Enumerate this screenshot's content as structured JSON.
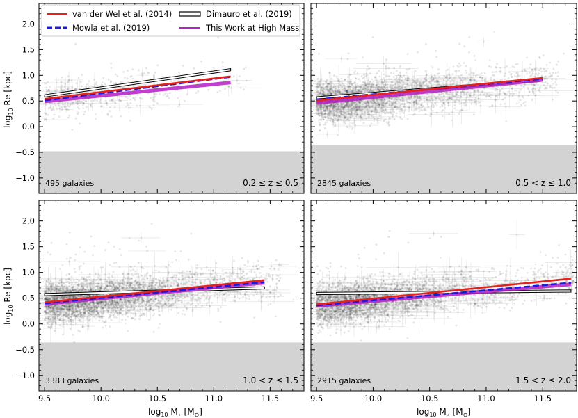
{
  "chart_data": {
    "type": "scatter",
    "xlabel": "log10 M⋆ [M⊙]",
    "ylabel": "log10 Re [kpc]",
    "xlabel_parts": {
      "base": "log",
      "sub": "10",
      "rest": " M",
      "star": "⋆",
      "unit": " [M",
      "sun": "⊙",
      "close": "]"
    },
    "ylabel_parts": {
      "base": "log",
      "sub": "10",
      "rest": " Re [kpc]"
    },
    "xlim": [
      9.45,
      11.8
    ],
    "ylim": [
      -1.3,
      2.4
    ],
    "xticks": [
      9.5,
      10.0,
      10.5,
      11.0,
      11.5
    ],
    "xtick_labels": [
      "9.5",
      "10.0",
      "10.5",
      "11.0",
      "11.5"
    ],
    "yticks": [
      -1.0,
      -0.5,
      0.0,
      0.5,
      1.0,
      1.5,
      2.0
    ],
    "ytick_labels": [
      "−1.0",
      "−0.5",
      "0.0",
      "0.5",
      "1.0",
      "1.5",
      "2.0"
    ],
    "legend": {
      "location": "top-left",
      "entries": [
        {
          "label": "van der Wel et al. (2014)",
          "style": "solid",
          "color": "#e8201a"
        },
        {
          "label": "Dimauro et al. (2019)",
          "style": "band",
          "color": "#000000"
        },
        {
          "label": "Mowla et al. (2019)",
          "style": "dashed",
          "color": "#1a1adc"
        },
        {
          "label": "This Work at High Mass",
          "style": "solid",
          "color": "#b51fc4"
        }
      ]
    },
    "panels": [
      {
        "count_label": "495 galaxies",
        "z_label": "0.2 ≤ z ≤ 0.5",
        "n_points": 495,
        "shaded_below": -0.48,
        "x_range": [
          9.5,
          11.15
        ],
        "vanderwel": [
          [
            9.5,
            0.54
          ],
          [
            11.15,
            0.98
          ]
        ],
        "mowla": [
          [
            9.5,
            0.51
          ],
          [
            11.15,
            0.97
          ]
        ],
        "dimauro": [
          [
            9.5,
            0.6
          ],
          [
            11.15,
            1.11
          ]
        ],
        "thiswork": [
          [
            9.5,
            0.49
          ],
          [
            11.15,
            0.86
          ]
        ]
      },
      {
        "count_label": "2845 galaxies",
        "z_label": "0.5 < z ≤ 1.0",
        "n_points": 2845,
        "shaded_below": -0.36,
        "x_range": [
          9.5,
          11.5
        ],
        "vanderwel": [
          [
            9.5,
            0.51
          ],
          [
            11.5,
            0.95
          ]
        ],
        "mowla": [
          [
            9.5,
            0.53
          ],
          [
            11.5,
            0.93
          ]
        ],
        "dimauro": [
          [
            9.5,
            0.56
          ],
          [
            11.5,
            0.91
          ]
        ],
        "thiswork": [
          [
            9.5,
            0.46
          ],
          [
            11.5,
            0.91
          ]
        ]
      },
      {
        "count_label": "3383 galaxies",
        "z_label": "1.0 < z ≤ 1.5",
        "n_points": 3383,
        "shaded_below": -0.36,
        "x_range": [
          9.5,
          11.45
        ],
        "vanderwel": [
          [
            9.5,
            0.42
          ],
          [
            11.45,
            0.85
          ]
        ],
        "mowla": [
          [
            9.5,
            0.4
          ],
          [
            11.45,
            0.81
          ]
        ],
        "dimauro": [
          [
            9.5,
            0.57
          ],
          [
            11.45,
            0.7
          ]
        ],
        "thiswork": [
          [
            9.5,
            0.39
          ],
          [
            11.45,
            0.8
          ]
        ]
      },
      {
        "count_label": "2915 galaxies",
        "z_label": "1.5 < z ≤ 2.0",
        "n_points": 2915,
        "shaded_below": -0.36,
        "x_range": [
          9.5,
          11.75
        ],
        "vanderwel": [
          [
            9.5,
            0.38
          ],
          [
            11.75,
            0.88
          ]
        ],
        "mowla": [
          [
            9.5,
            0.36
          ],
          [
            11.75,
            0.8
          ]
        ],
        "dimauro": [
          [
            9.5,
            0.59
          ],
          [
            11.75,
            0.64
          ]
        ],
        "thiswork": [
          [
            9.5,
            0.35
          ],
          [
            11.75,
            0.77
          ]
        ]
      }
    ]
  }
}
